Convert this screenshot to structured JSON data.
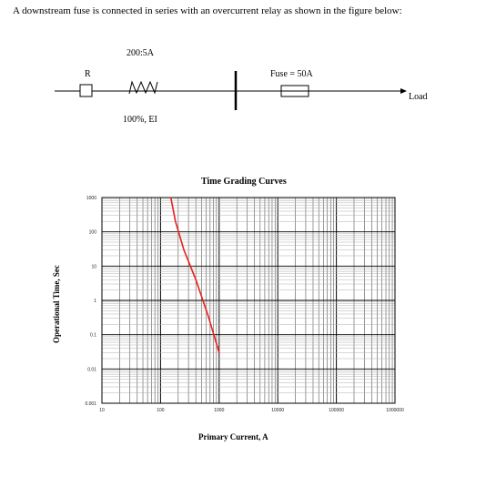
{
  "question": "A downstream fuse is connected in series with an overcurrent relay as shown in the figure below:",
  "circuit": {
    "ct_ratio": "200:5A",
    "relay_label": "R",
    "relay_setting": "100%, EI",
    "fuse_label": "Fuse = 50A",
    "load_label": "Load"
  },
  "chart_data": {
    "type": "line",
    "title": "Time Grading Curves",
    "xlabel": "Primary Current, A",
    "ylabel": "Operational Time, Sec",
    "xscale": "log",
    "yscale": "log",
    "xlim": [
      10,
      1000000
    ],
    "ylim": [
      0.001,
      1000
    ],
    "grid": true,
    "x_ticks": [
      "10",
      "100",
      "1000",
      "10000",
      "100000",
      "1000000"
    ],
    "y_ticks": [
      "1000",
      "100",
      "10",
      "1",
      "0.1",
      "0.01",
      "0.001"
    ],
    "series": [
      {
        "color": "#e8211c",
        "points": [
          [
            150,
            1000
          ],
          [
            180,
            200
          ],
          [
            250,
            30
          ],
          [
            400,
            4
          ],
          [
            650,
            0.35
          ],
          [
            1000,
            0.03
          ]
        ]
      }
    ]
  }
}
